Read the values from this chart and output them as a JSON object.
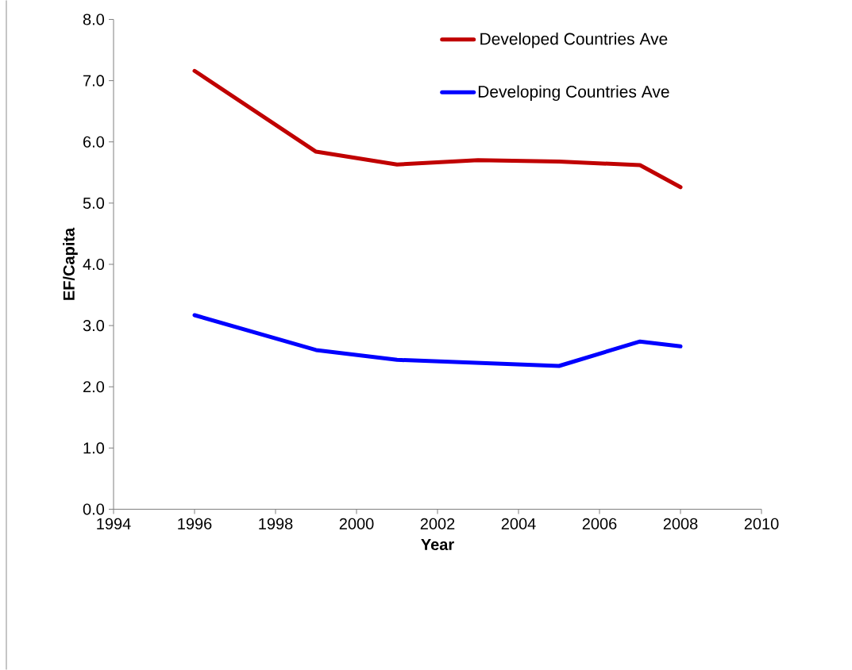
{
  "chart_data": {
    "type": "line",
    "xlabel": "Year",
    "ylabel": "EF/Capita",
    "series": [
      {
        "name": "Developed Countries Ave",
        "color": "#c00000",
        "x": [
          1996,
          1999,
          2001,
          2003,
          2005,
          2007,
          2008
        ],
        "values": [
          7.16,
          5.84,
          5.63,
          5.7,
          5.68,
          5.62,
          5.26
        ]
      },
      {
        "name": "Developing Countries Ave",
        "color": "#0000ff",
        "x": [
          1996,
          1999,
          2001,
          2005,
          2007,
          2008
        ],
        "values": [
          3.17,
          2.6,
          2.44,
          2.34,
          2.74,
          2.66
        ]
      }
    ],
    "xlim": [
      1994,
      2010
    ],
    "xticks": [
      1994,
      1996,
      1998,
      2000,
      2002,
      2004,
      2006,
      2008,
      2010
    ],
    "ylim": [
      0,
      8
    ],
    "yticks": [
      {
        "value": 0,
        "label": "0.0"
      },
      {
        "value": 1,
        "label": "1.0"
      },
      {
        "value": 2,
        "label": "2.0"
      },
      {
        "value": 3,
        "label": "3.0"
      },
      {
        "value": 4,
        "label": "4.0"
      },
      {
        "value": 5,
        "label": "5.0"
      },
      {
        "value": 6,
        "label": "6.0"
      },
      {
        "value": 7,
        "label": "7.0"
      },
      {
        "value": 8,
        "label": "8.0"
      }
    ],
    "legend": "top right",
    "grid": false,
    "marker": "none",
    "line_style": "solid"
  }
}
